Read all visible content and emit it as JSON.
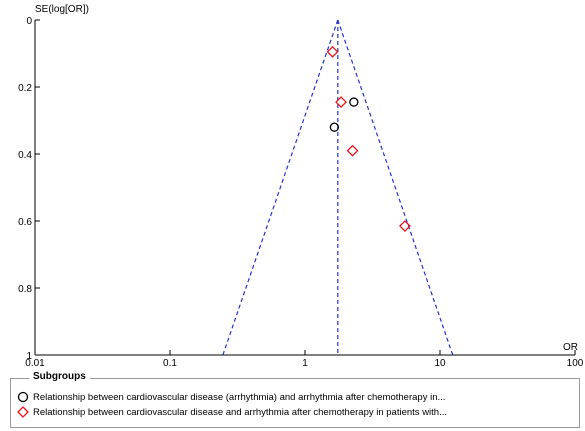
{
  "chart_data": {
    "type": "scatter",
    "title": "",
    "xlabel": "OR",
    "ylabel": "SE(log[OR])",
    "xscale": "log",
    "xlim": [
      0.01,
      100
    ],
    "ylim": [
      0,
      1
    ],
    "y_inverted": true,
    "x_ticks": [
      "0.01",
      "0.1",
      "1",
      "10",
      "100"
    ],
    "y_ticks": [
      "0",
      "0.2",
      "0.4",
      "0.6",
      "0.8",
      "1"
    ],
    "pooled_or": 1.75,
    "grid": false,
    "legend_position": "bottom",
    "series": [
      {
        "name": "Relationship between cardiovascular disease (arrhythmia) and arrhythmia after chemotherapy in...",
        "marker": "circle",
        "color": "#000000",
        "points": [
          {
            "x": 2.3,
            "y": 0.245
          },
          {
            "x": 1.65,
            "y": 0.32
          }
        ]
      },
      {
        "name": "Relationship between cardiovascular disease and arrhythmia after chemotherapy in patients with...",
        "marker": "diamond",
        "color": "#e8141c",
        "points": [
          {
            "x": 1.6,
            "y": 0.095
          },
          {
            "x": 1.85,
            "y": 0.245
          },
          {
            "x": 2.25,
            "y": 0.39
          },
          {
            "x": 5.5,
            "y": 0.615
          }
        ]
      }
    ]
  },
  "legend": {
    "title": "Subgroups",
    "items": [
      "Relationship between cardiovascular disease (arrhythmia) and arrhythmia after chemotherapy in...",
      "Relationship between cardiovascular disease and arrhythmia after chemotherapy in patients with..."
    ]
  },
  "colors": {
    "funnel": "#2233cc",
    "circle_marker": "#000000",
    "diamond_marker": "#e8141c"
  }
}
